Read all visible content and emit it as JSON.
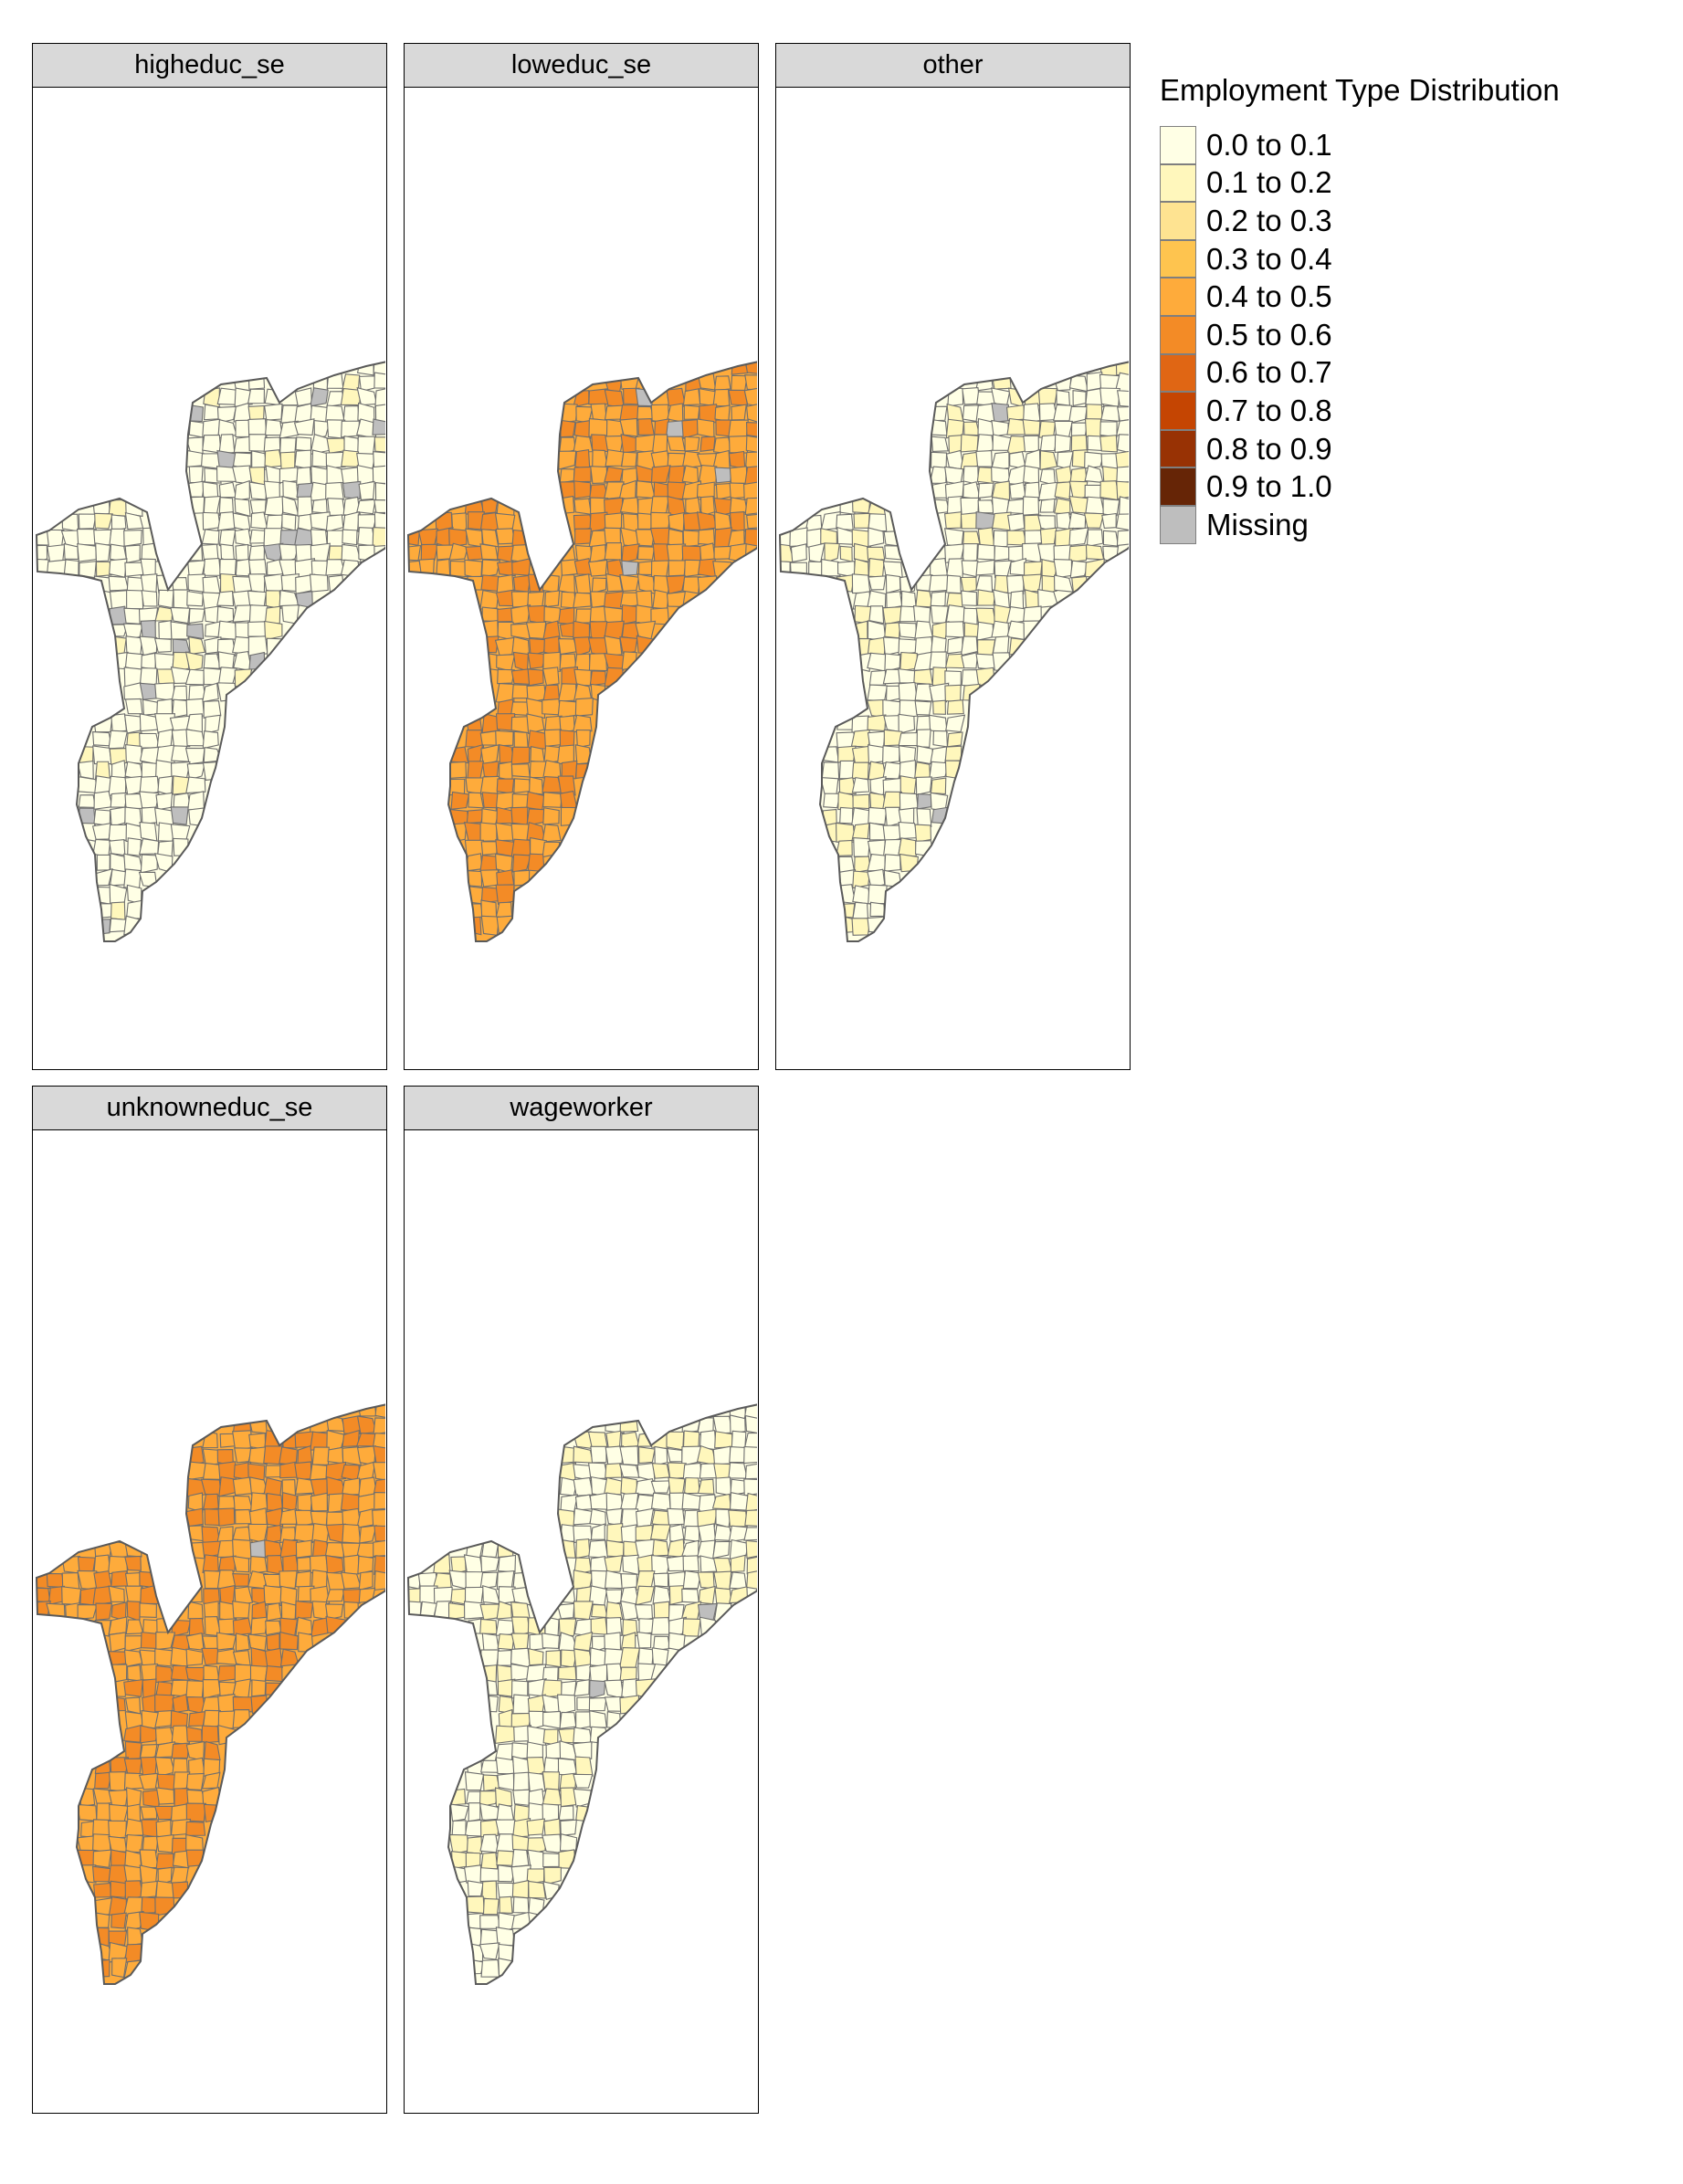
{
  "legend": {
    "title": "Employment Type Distribution",
    "classes": [
      {
        "label": "0.0 to 0.1",
        "color": "#ffffe5"
      },
      {
        "label": "0.1 to 0.2",
        "color": "#fff7bc"
      },
      {
        "label": "0.2 to 0.3",
        "color": "#fee391"
      },
      {
        "label": "0.3 to 0.4",
        "color": "#fec44f"
      },
      {
        "label": "0.4 to 0.5",
        "color": "#feab3b"
      },
      {
        "label": "0.5 to 0.6",
        "color": "#f38b26"
      },
      {
        "label": "0.6 to 0.7",
        "color": "#e06614"
      },
      {
        "label": "0.7 to 0.8",
        "color": "#c54502"
      },
      {
        "label": "0.8 to 0.9",
        "color": "#983204"
      },
      {
        "label": "0.9 to 1.0",
        "color": "#662506"
      },
      {
        "label": "Missing",
        "color": "#bebebe"
      }
    ]
  },
  "panels": [
    {
      "title": "higheduc_se",
      "dominant_class": 0,
      "secondary_class": 1,
      "secondary_share": 0.08,
      "missing_share": 0.05
    },
    {
      "title": "loweduc_se",
      "dominant_class": 4,
      "secondary_class": 5,
      "secondary_share": 0.4,
      "missing_share": 0.005
    },
    {
      "title": "other",
      "dominant_class": 0,
      "secondary_class": 1,
      "secondary_share": 0.35,
      "missing_share": 0.008
    },
    {
      "title": "unknowneduc_se",
      "dominant_class": 4,
      "secondary_class": 5,
      "secondary_share": 0.35,
      "missing_share": 0.004
    },
    {
      "title": "wageworker",
      "dominant_class": 0,
      "secondary_class": 1,
      "secondary_share": 0.3,
      "missing_share": 0.003
    }
  ]
}
